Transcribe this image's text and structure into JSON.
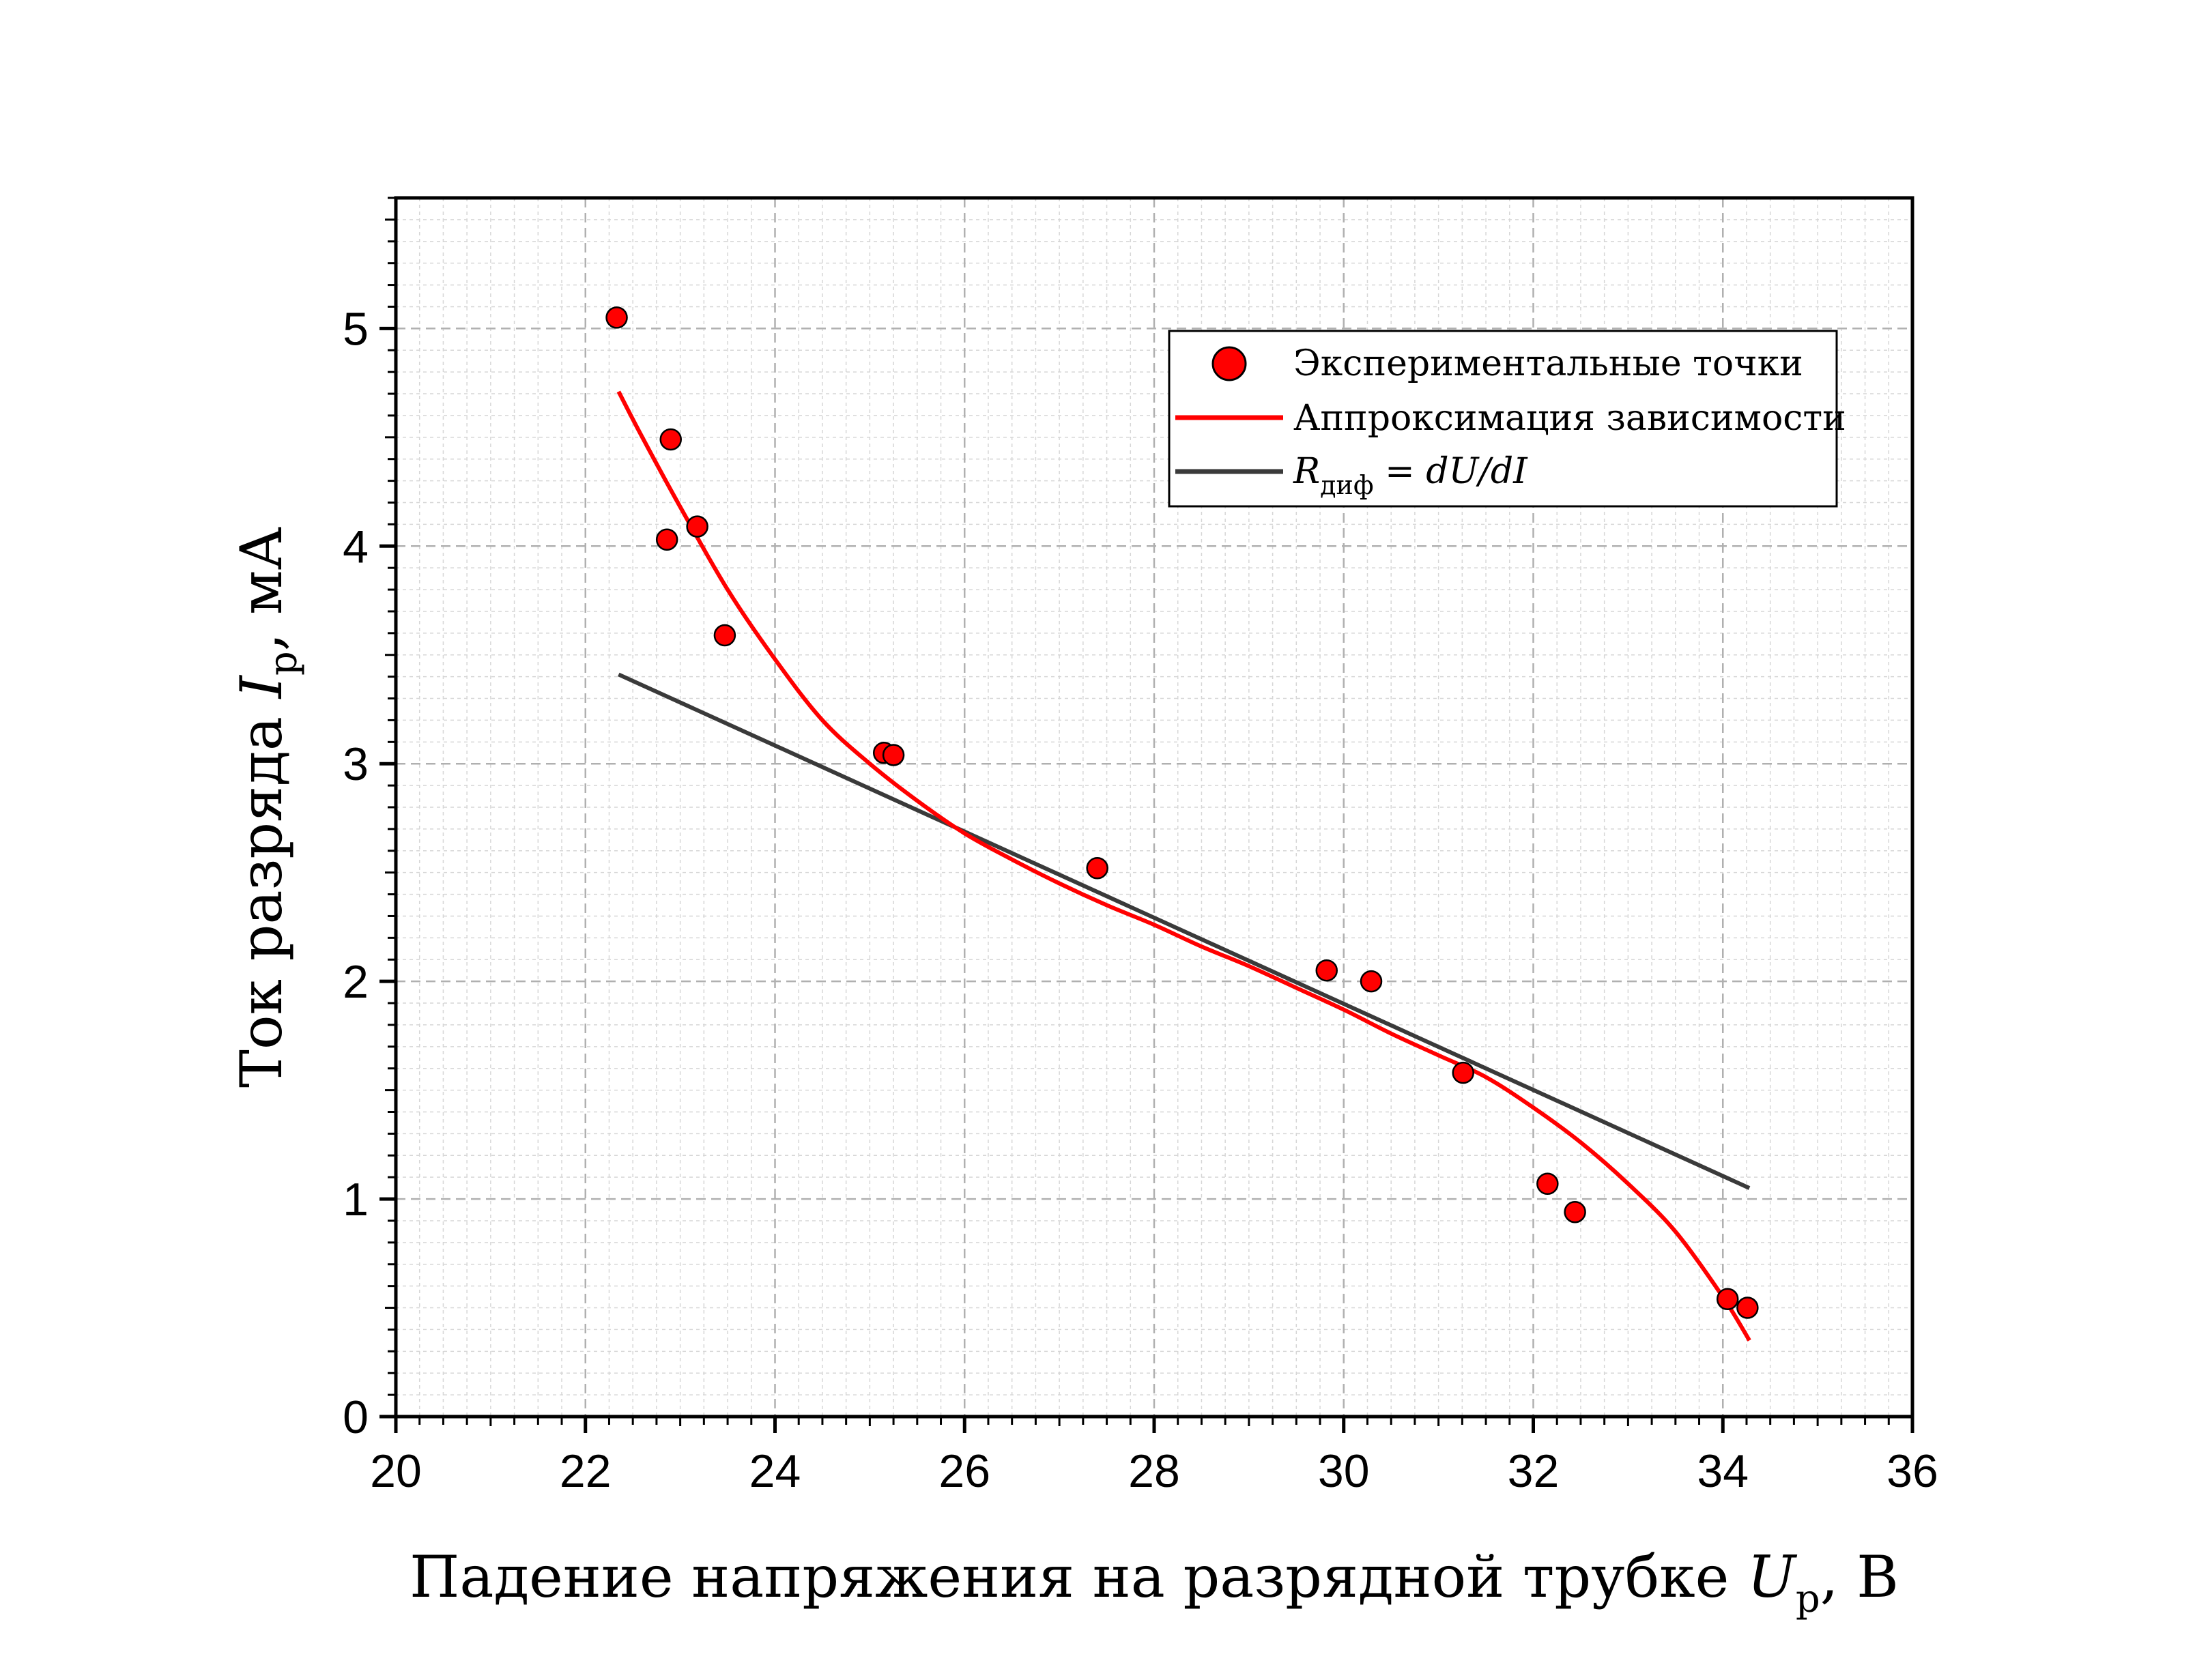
{
  "chart_data": {
    "type": "scatter",
    "xlabel": "Падение напряжения на разрядной трубке U_р, В",
    "xlabel_main": "Падение напряжения на разрядной трубке ",
    "xlabel_var": "U",
    "xlabel_sub": "р",
    "xlabel_unit": ", В",
    "ylabel": "Ток разряда I_р, мА",
    "ylabel_main": "Ток разряда ",
    "ylabel_var": "I",
    "ylabel_sub": "р",
    "ylabel_unit": ", мА",
    "xlim": [
      20,
      36
    ],
    "ylim": [
      0,
      5.6
    ],
    "xticks": [
      20,
      22,
      24,
      26,
      28,
      30,
      32,
      34,
      36
    ],
    "yticks": [
      0,
      1,
      2,
      3,
      4,
      5
    ],
    "grid": true,
    "legend_position": "top-right",
    "legend": {
      "points_label": "Экспериментальные точки",
      "fit_label": "Аппроксимация зависимости",
      "rdiff_var": "R",
      "rdiff_sub": "диф",
      "rdiff_rest": " = dU/dI"
    },
    "colors": {
      "points": "#ff0000",
      "fit": "#ff0000",
      "rdiff": "#3a3a3a",
      "grid": "#b0b0b0"
    },
    "series": [
      {
        "name": "Экспериментальные точки",
        "kind": "scatter",
        "x": [
          22.33,
          22.9,
          22.86,
          23.18,
          23.47,
          25.15,
          25.25,
          27.4,
          29.82,
          30.29,
          31.26,
          32.15,
          32.44,
          34.05,
          34.26
        ],
        "y": [
          5.05,
          4.49,
          4.03,
          4.09,
          3.59,
          3.05,
          3.04,
          2.52,
          2.05,
          2.0,
          1.58,
          1.07,
          0.94,
          0.54,
          0.5
        ]
      },
      {
        "name": "Аппроксимация зависимости",
        "kind": "line",
        "x": [
          22.35,
          22.6,
          23.0,
          23.5,
          24.0,
          24.5,
          25.0,
          25.5,
          26.0,
          26.5,
          27.0,
          27.5,
          28.0,
          28.5,
          29.0,
          29.5,
          30.0,
          30.5,
          31.0,
          31.5,
          32.0,
          32.5,
          33.0,
          33.5,
          34.0,
          34.28
        ],
        "y": [
          4.71,
          4.5,
          4.18,
          3.8,
          3.48,
          3.2,
          3.0,
          2.83,
          2.68,
          2.56,
          2.45,
          2.35,
          2.26,
          2.16,
          2.07,
          1.97,
          1.87,
          1.76,
          1.66,
          1.56,
          1.42,
          1.26,
          1.07,
          0.85,
          0.55,
          0.35
        ]
      },
      {
        "name": "R_диф = dU/dI",
        "kind": "line",
        "x": [
          22.35,
          34.28
        ],
        "y": [
          3.41,
          1.05
        ]
      }
    ]
  }
}
